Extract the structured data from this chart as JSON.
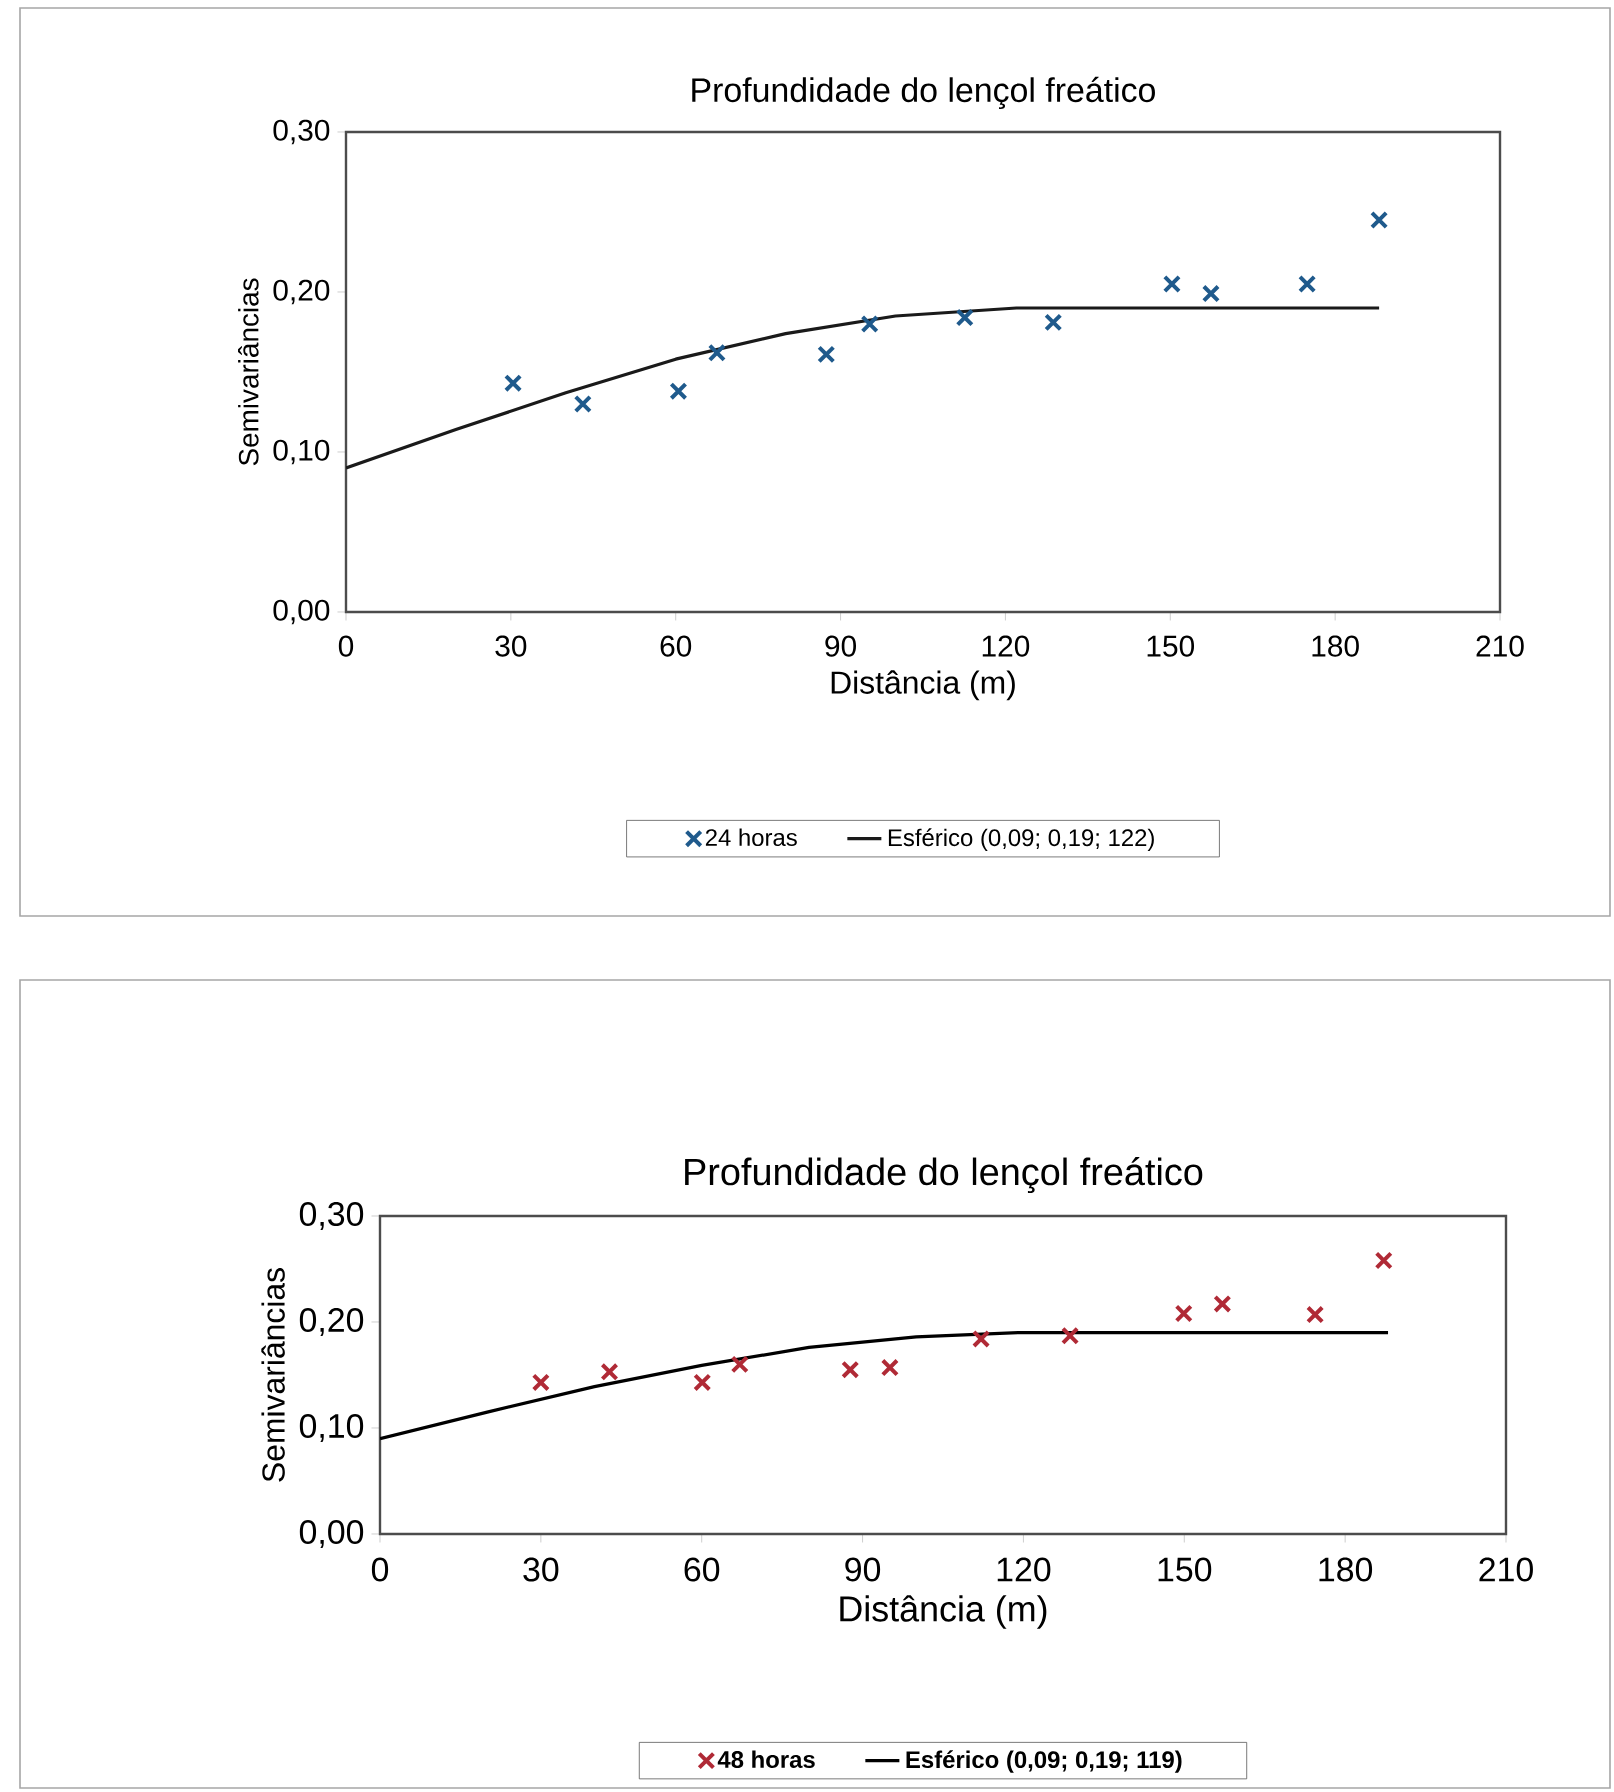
{
  "chart_data": [
    {
      "type": "scatter",
      "title": "Profundidade do lençol freático",
      "xlabel": "Distância (m)",
      "ylabel": "Semivariâncias",
      "xlim": [
        0,
        210
      ],
      "ylim": [
        0,
        0.3
      ],
      "xticks": [
        0,
        30,
        60,
        90,
        120,
        150,
        180,
        210
      ],
      "yticks": [
        {
          "value": 0,
          "label": "0,00"
        },
        {
          "value": 0.1,
          "label": "0,10"
        },
        {
          "value": 0.2,
          "label": "0,20"
        },
        {
          "value": 0.3,
          "label": "0,30"
        }
      ],
      "legend": "bottom",
      "grid": false,
      "series": [
        {
          "name": "24 horas",
          "color": "#1f5a8c",
          "marker": "cross",
          "x": [
            30.4,
            43.1,
            60.5,
            67.5,
            87.4,
            95.3,
            112.6,
            128.7,
            150.3,
            157.4,
            174.9,
            188
          ],
          "values": [
            0.143,
            0.13,
            0.138,
            0.162,
            0.161,
            0.18,
            0.184,
            0.181,
            0.205,
            0.199,
            0.205,
            0.245
          ]
        },
        {
          "name": "Esférico  (0,09; 0,19;  122)",
          "type": "line",
          "color": "#1a1a1a",
          "marker": "none",
          "x": [
            0,
            20,
            40,
            60,
            80,
            100,
            122,
            188
          ],
          "values": [
            0.09,
            0.114,
            0.137,
            0.158,
            0.174,
            0.185,
            0.19,
            0.19
          ]
        }
      ]
    },
    {
      "type": "scatter",
      "title": "Profundidade do lençol freático",
      "xlabel": "Distância (m)",
      "ylabel": "Semivariâncias",
      "xlim": [
        0,
        210
      ],
      "ylim": [
        0,
        0.3
      ],
      "xticks": [
        0,
        30,
        60,
        90,
        120,
        150,
        180,
        210
      ],
      "yticks": [
        {
          "value": 0,
          "label": "0,00"
        },
        {
          "value": 0.1,
          "label": "0,10"
        },
        {
          "value": 0.2,
          "label": "0,20"
        },
        {
          "value": 0.3,
          "label": "0,30"
        }
      ],
      "legend": "bottom",
      "grid": false,
      "series": [
        {
          "name": "48 horas",
          "color": "#b02a36",
          "marker": "cross",
          "x": [
            30,
            42.8,
            60.1,
            67.1,
            87.7,
            95.1,
            112.1,
            128.7,
            149.9,
            157.1,
            174.4,
            187.2
          ],
          "values": [
            0.143,
            0.153,
            0.143,
            0.16,
            0.155,
            0.157,
            0.184,
            0.187,
            0.208,
            0.217,
            0.207,
            0.258
          ]
        },
        {
          "name": "Esférico  (0,09; 0,19;  119)",
          "type": "line",
          "color": "#000000",
          "marker": "none",
          "x": [
            0,
            20,
            40,
            60,
            80,
            100,
            119,
            188
          ],
          "values": [
            0.09,
            0.115,
            0.139,
            0.159,
            0.176,
            0.186,
            0.19,
            0.19
          ]
        }
      ]
    }
  ]
}
